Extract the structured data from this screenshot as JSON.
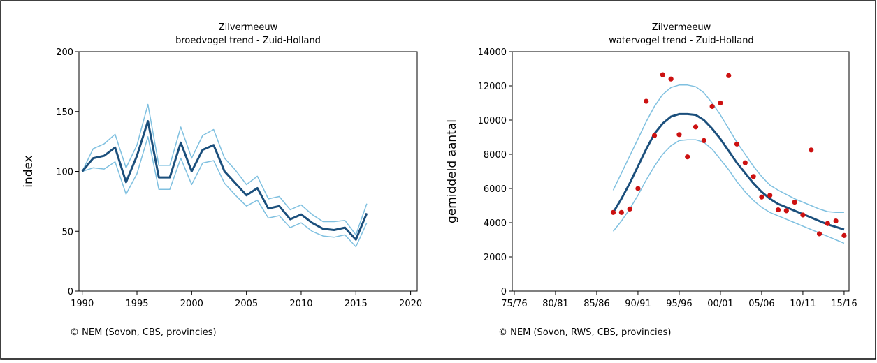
{
  "chart_data": [
    {
      "type": "line",
      "title": "Zilvermeeuw",
      "subtitle": "broedvogel trend - Zuid-Holland",
      "y_label": "index",
      "note": "© NEM (Sovon, CBS, provincies)",
      "x": [
        1990,
        1991,
        1992,
        1993,
        1994,
        1995,
        1996,
        1997,
        1998,
        1999,
        2000,
        2001,
        2002,
        2003,
        2004,
        2005,
        2006,
        2007,
        2008,
        2009,
        2010,
        2011,
        2012,
        2013,
        2014,
        2015,
        2016
      ],
      "series": [
        {
          "color": "#7fc0e0",
          "values": [
            100,
            119,
            123,
            131,
            103,
            122,
            156,
            105,
            105,
            137,
            111,
            130,
            135,
            111,
            101,
            89,
            96,
            77,
            79,
            68,
            72,
            64,
            58,
            58,
            59,
            47,
            73
          ]
        },
        {
          "color": "#7fc0e0",
          "values": [
            100,
            103,
            102,
            108,
            81,
            98,
            129,
            85,
            85,
            111,
            89,
            107,
            109,
            90,
            80,
            71,
            76,
            61,
            63,
            53,
            57,
            50,
            46,
            45,
            47,
            37,
            57
          ]
        },
        {
          "color": "#1b4f7c",
          "values": [
            100,
            111,
            113,
            120,
            91,
            113,
            142,
            95,
            95,
            124,
            100,
            118,
            122,
            100,
            90,
            80,
            86,
            69,
            71,
            60,
            64,
            57,
            52,
            51,
            53,
            43,
            65
          ]
        }
      ],
      "xlim": [
        1989.7,
        2020.6
      ],
      "xticks": [
        1990,
        1995,
        2000,
        2005,
        2010,
        2015,
        2020
      ],
      "ylim": [
        0,
        200
      ],
      "yticks": [
        0,
        50,
        100,
        150,
        200
      ],
      "grid": false
    },
    {
      "type": "line",
      "title": "Zilvermeeuw",
      "subtitle": "watervogel trend - Zuid-Holland",
      "y_label": "gemiddeld aantal",
      "note": "© NEM (Sovon, RWS, CBS, provincies)",
      "x": [
        1987,
        1988,
        1989,
        1990,
        1991,
        1992,
        1993,
        1994,
        1995,
        1996,
        1997,
        1998,
        1999,
        2000,
        2001,
        2002,
        2003,
        2004,
        2005,
        2006,
        2007,
        2008,
        2009,
        2010,
        2011,
        2012,
        2013,
        2014,
        2015
      ],
      "series": [
        {
          "color": "#7fc0e0",
          "values": [
            5900,
            6900,
            7900,
            8900,
            9900,
            10800,
            11500,
            11900,
            12050,
            12050,
            11950,
            11600,
            11000,
            10300,
            9500,
            8700,
            8000,
            7300,
            6700,
            6200,
            5900,
            5650,
            5400,
            5200,
            5000,
            4800,
            4650,
            4600,
            4600
          ]
        },
        {
          "color": "#7fc0e0",
          "values": [
            3500,
            4100,
            4800,
            5600,
            6500,
            7300,
            8000,
            8500,
            8800,
            8850,
            8850,
            8700,
            8300,
            7700,
            7100,
            6400,
            5800,
            5300,
            4900,
            4600,
            4400,
            4200,
            4000,
            3800,
            3600,
            3400,
            3200,
            3000,
            2800
          ]
        },
        {
          "color": "#1b4f7c",
          "values": [
            4600,
            5400,
            6300,
            7300,
            8300,
            9200,
            9800,
            10200,
            10350,
            10350,
            10300,
            10000,
            9500,
            8900,
            8200,
            7500,
            6900,
            6300,
            5800,
            5400,
            5100,
            4900,
            4700,
            4500,
            4300,
            4100,
            3900,
            3750,
            3600
          ]
        },
        {
          "type": "scatter",
          "color": "#cc1111",
          "values": [
            4600,
            4600,
            4800,
            6000,
            11100,
            9100,
            12650,
            12400,
            9150,
            7850,
            9600,
            8800,
            10800,
            11000,
            12600,
            8600,
            7500,
            6700,
            5500,
            5600,
            4750,
            4700,
            5200,
            4450,
            8250,
            3350,
            3950,
            4100,
            3250
          ]
        }
      ],
      "xlim": [
        1974.75,
        2015.6
      ],
      "xticks": [
        {
          "value": 1975,
          "label": "75/76"
        },
        {
          "value": 1980,
          "label": "80/81"
        },
        {
          "value": 1985,
          "label": "85/86"
        },
        {
          "value": 1990,
          "label": "90/91"
        },
        {
          "value": 1995,
          "label": "95/96"
        },
        {
          "value": 2000,
          "label": "00/01"
        },
        {
          "value": 2005,
          "label": "05/06"
        },
        {
          "value": 2010,
          "label": "10/11"
        },
        {
          "value": 2015,
          "label": "15/16"
        }
      ],
      "ylim": [
        0,
        14000
      ],
      "yticks": [
        0,
        2000,
        4000,
        6000,
        8000,
        10000,
        12000,
        14000
      ],
      "grid": false
    }
  ]
}
